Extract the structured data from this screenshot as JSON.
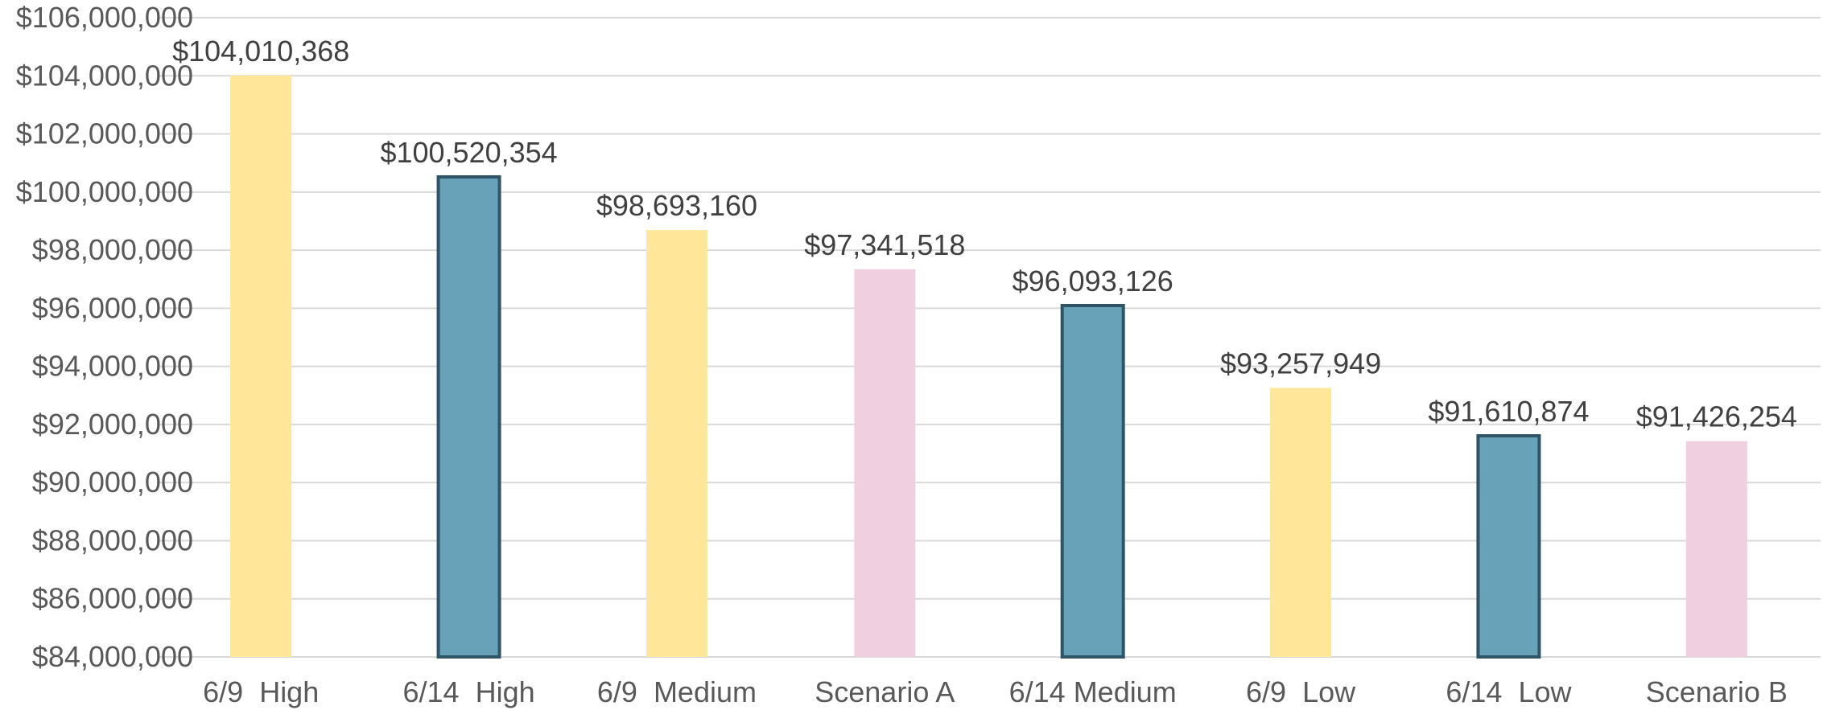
{
  "chart_data": {
    "type": "bar",
    "title": "",
    "xlabel": "",
    "ylabel": "",
    "categories": [
      "6/9  High",
      "6/14  High",
      "6/9  Medium",
      "Scenario A",
      "6/14 Medium",
      "6/9  Low",
      "6/14  Low",
      "Scenario B"
    ],
    "values": [
      104010368,
      100520354,
      98693160,
      97341518,
      96093126,
      93257949,
      91610874,
      91426254
    ],
    "data_labels": [
      "$104,010,368",
      "$100,520,354",
      "$98,693,160",
      "$97,341,518",
      "$96,093,126",
      "$93,257,949",
      "$91,610,874",
      "$91,426,254"
    ],
    "bar_colors": [
      "#FFE699",
      "#67A2B9",
      "#FFE699",
      "#EFCFE0",
      "#67A2B9",
      "#FFE699",
      "#67A2B9",
      "#EFCFE0"
    ],
    "bar_borders": [
      "none",
      "#2E5466",
      "none",
      "none",
      "#2E5466",
      "none",
      "#2E5466",
      "none"
    ],
    "ylim": [
      84000000,
      106000000
    ],
    "y_ticks": [
      84000000,
      86000000,
      88000000,
      90000000,
      92000000,
      94000000,
      96000000,
      98000000,
      100000000,
      102000000,
      104000000,
      106000000
    ],
    "y_tick_labels": [
      "$84,000,000",
      "$86,000,000",
      "$88,000,000",
      "$90,000,000",
      "$92,000,000",
      "$94,000,000",
      "$96,000,000",
      "$98,000,000",
      "$100,000,000",
      "$102,000,000",
      "$104,000,000",
      "$106,000,000"
    ],
    "grid": true,
    "legend": "none"
  }
}
